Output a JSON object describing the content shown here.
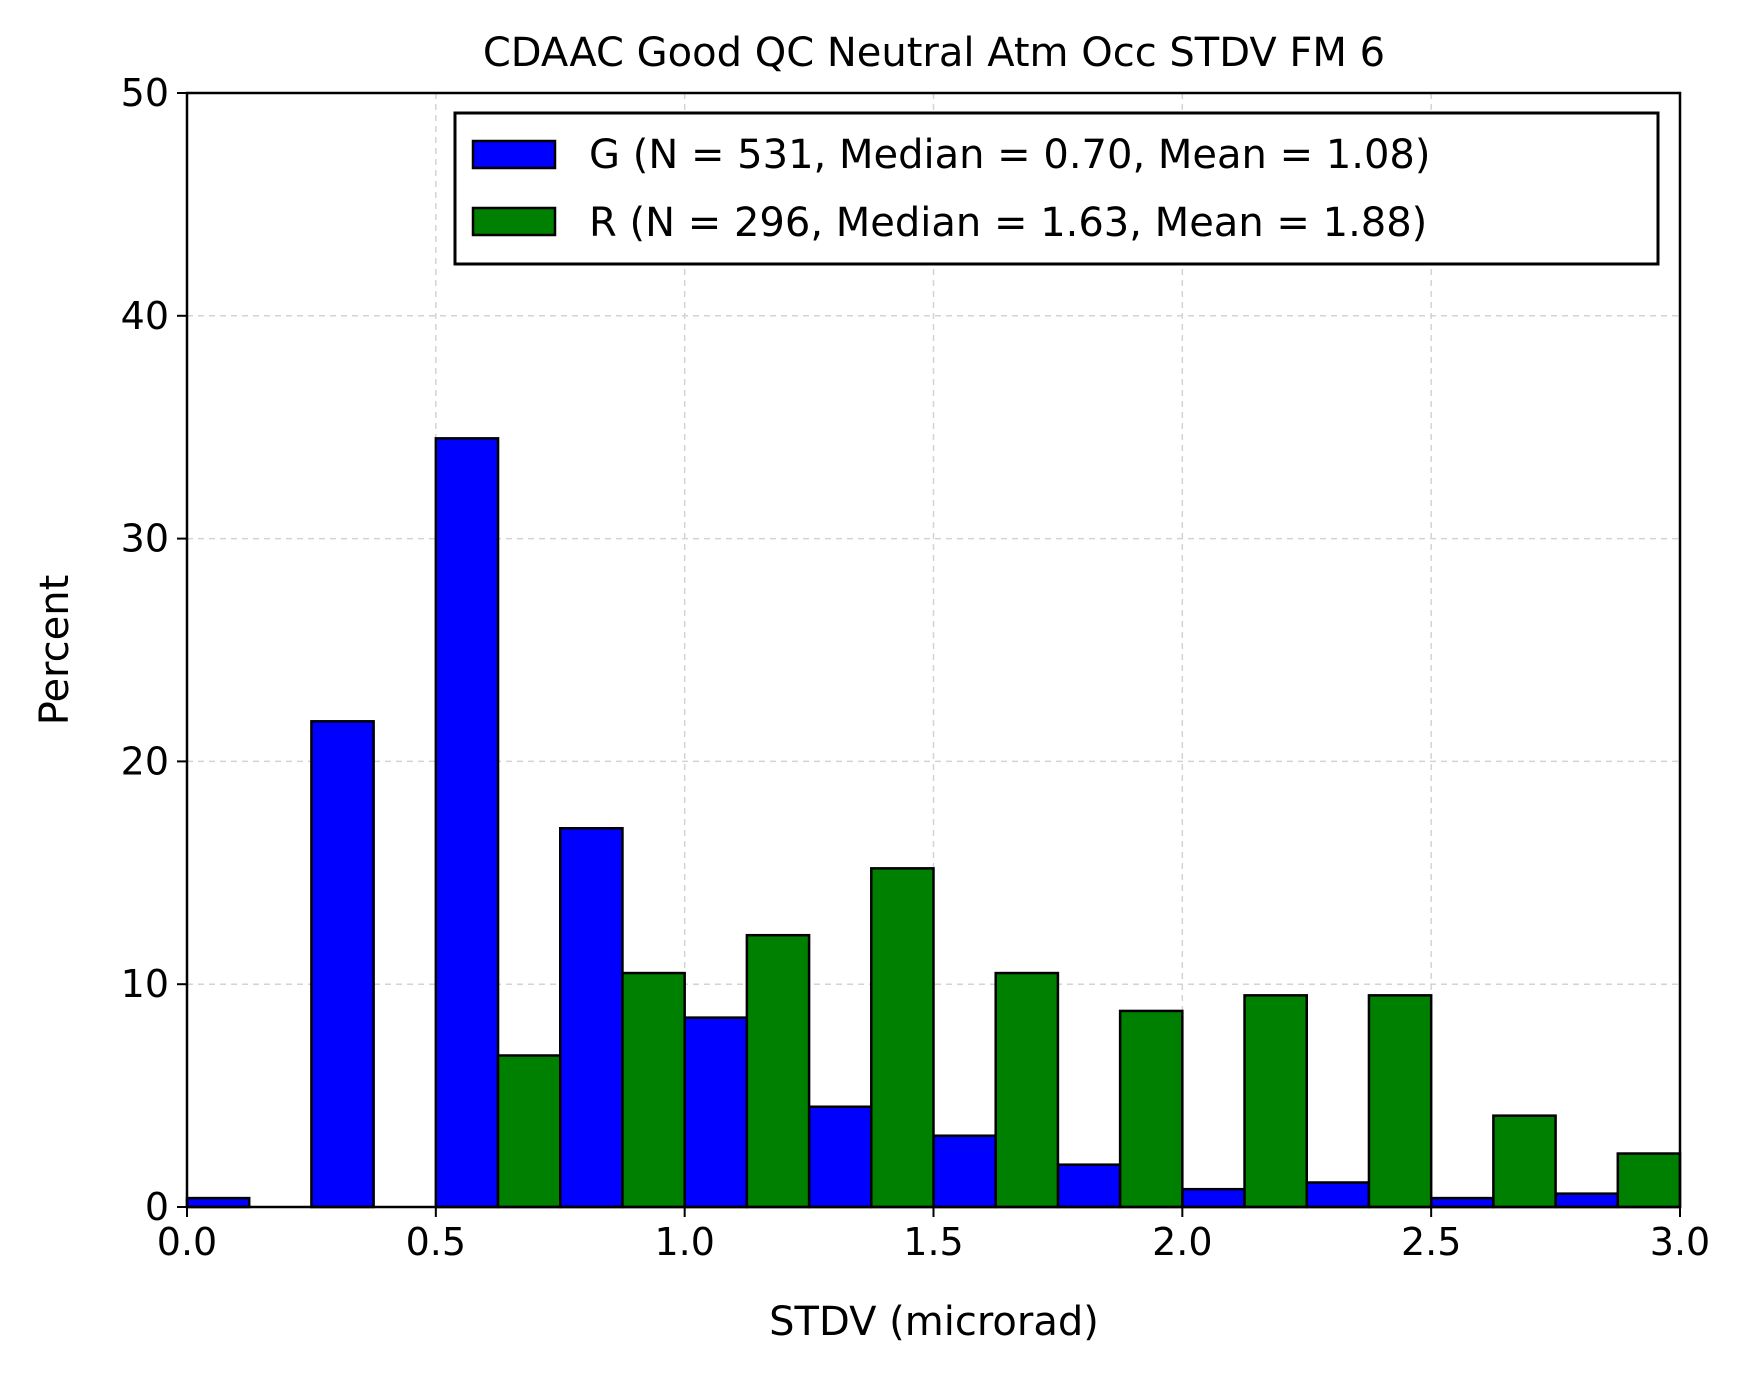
{
  "chart_data": {
    "type": "bar",
    "title": "CDAAC Good QC Neutral Atm Occ STDV FM 6",
    "xlabel": "STDV (microrad)",
    "ylabel": "Percent",
    "xlim": [
      0.0,
      3.0
    ],
    "ylim": [
      0,
      50
    ],
    "x_ticks": [
      "0.0",
      "0.5",
      "1.0",
      "1.5",
      "2.0",
      "2.5",
      "3.0"
    ],
    "y_ticks": [
      "0",
      "10",
      "20",
      "30",
      "40",
      "50"
    ],
    "grid": true,
    "legend_position": "top-right",
    "bin_width": 0.25,
    "bin_starts": [
      0.0,
      0.25,
      0.5,
      0.75,
      1.0,
      1.25,
      1.5,
      1.75,
      2.0,
      2.25,
      2.5,
      2.75
    ],
    "series": [
      {
        "name": "G (N = 531, Median = 0.70, Mean = 1.08)",
        "color": "#0000ff",
        "values": [
          0.4,
          21.8,
          34.5,
          17.0,
          8.5,
          4.5,
          3.2,
          1.9,
          0.8,
          1.1,
          0.4,
          0.6
        ]
      },
      {
        "name": "R (N = 296, Median = 1.63, Mean = 1.88)",
        "color": "#008000",
        "values": [
          0.0,
          0.0,
          6.8,
          10.5,
          12.2,
          15.2,
          10.5,
          8.8,
          9.5,
          9.5,
          4.1,
          2.4
        ]
      }
    ]
  }
}
